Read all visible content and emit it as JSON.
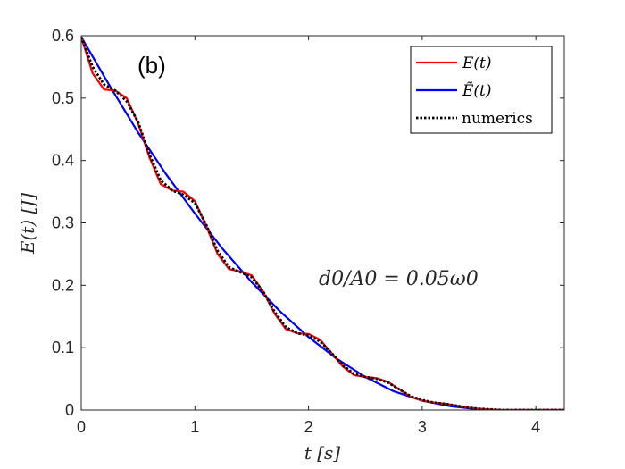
{
  "chart_data": {
    "type": "line",
    "panel_label": "(b)",
    "xlabel": "t [s]",
    "ylabel": "E(t) [J]",
    "xlim": [
      0,
      4.25
    ],
    "ylim": [
      0,
      0.6
    ],
    "x_ticks": [
      0,
      1,
      2,
      3,
      4
    ],
    "y_ticks": [
      0,
      0.1,
      0.2,
      0.3,
      0.4,
      0.5,
      0.6
    ],
    "grid": false,
    "legend_position": "top-right",
    "annotation": "d0/A0 = 0.05ω0",
    "series": [
      {
        "name": "E(t)",
        "color": "#ff0000",
        "style": "solid",
        "x": [
          0,
          0.1,
          0.2,
          0.3,
          0.4,
          0.5,
          0.6,
          0.7,
          0.8,
          0.9,
          1.0,
          1.1,
          1.2,
          1.3,
          1.4,
          1.5,
          1.6,
          1.7,
          1.8,
          1.9,
          2.0,
          2.1,
          2.2,
          2.3,
          2.4,
          2.5,
          2.6,
          2.7,
          2.8,
          2.9,
          3.0,
          3.1,
          3.2,
          3.3,
          3.4,
          3.5,
          3.6,
          3.7,
          3.8,
          4.0,
          4.25
        ],
        "y": [
          0.598,
          0.54,
          0.514,
          0.512,
          0.5,
          0.46,
          0.405,
          0.362,
          0.352,
          0.35,
          0.335,
          0.295,
          0.25,
          0.226,
          0.222,
          0.216,
          0.19,
          0.155,
          0.13,
          0.123,
          0.122,
          0.113,
          0.092,
          0.07,
          0.056,
          0.053,
          0.051,
          0.045,
          0.033,
          0.021,
          0.015,
          0.012,
          0.01,
          0.007,
          0.004,
          0.002,
          0.001,
          0.0,
          0.0,
          0.0,
          0.0
        ]
      },
      {
        "name": "Ẽ(t)",
        "color": "#0000ff",
        "style": "solid",
        "x": [
          0,
          0.25,
          0.5,
          0.75,
          1.0,
          1.25,
          1.5,
          1.75,
          2.0,
          2.25,
          2.5,
          2.75,
          3.0,
          3.25,
          3.5,
          3.7,
          4.0,
          4.25
        ],
        "y": [
          0.598,
          0.52,
          0.445,
          0.377,
          0.315,
          0.257,
          0.205,
          0.158,
          0.117,
          0.082,
          0.053,
          0.03,
          0.015,
          0.006,
          0.001,
          0.0,
          0.0,
          0.0
        ]
      },
      {
        "name": "numerics",
        "color": "#000000",
        "style": "dotted",
        "x": [
          0,
          0.1,
          0.2,
          0.3,
          0.4,
          0.5,
          0.6,
          0.7,
          0.8,
          0.9,
          1.0,
          1.1,
          1.2,
          1.3,
          1.4,
          1.5,
          1.6,
          1.7,
          1.8,
          1.9,
          2.0,
          2.1,
          2.2,
          2.3,
          2.4,
          2.5,
          2.6,
          2.7,
          2.8,
          2.9,
          3.0,
          3.1,
          3.2,
          3.3,
          3.4,
          3.5,
          3.6,
          3.7,
          3.8,
          4.0,
          4.25
        ],
        "y": [
          0.598,
          0.55,
          0.522,
          0.512,
          0.495,
          0.462,
          0.41,
          0.368,
          0.352,
          0.345,
          0.332,
          0.297,
          0.255,
          0.229,
          0.221,
          0.213,
          0.19,
          0.158,
          0.133,
          0.123,
          0.12,
          0.11,
          0.092,
          0.072,
          0.058,
          0.053,
          0.05,
          0.044,
          0.033,
          0.022,
          0.016,
          0.012,
          0.01,
          0.007,
          0.004,
          0.002,
          0.001,
          0.0,
          0.0,
          0.0,
          0.0
        ]
      }
    ]
  }
}
